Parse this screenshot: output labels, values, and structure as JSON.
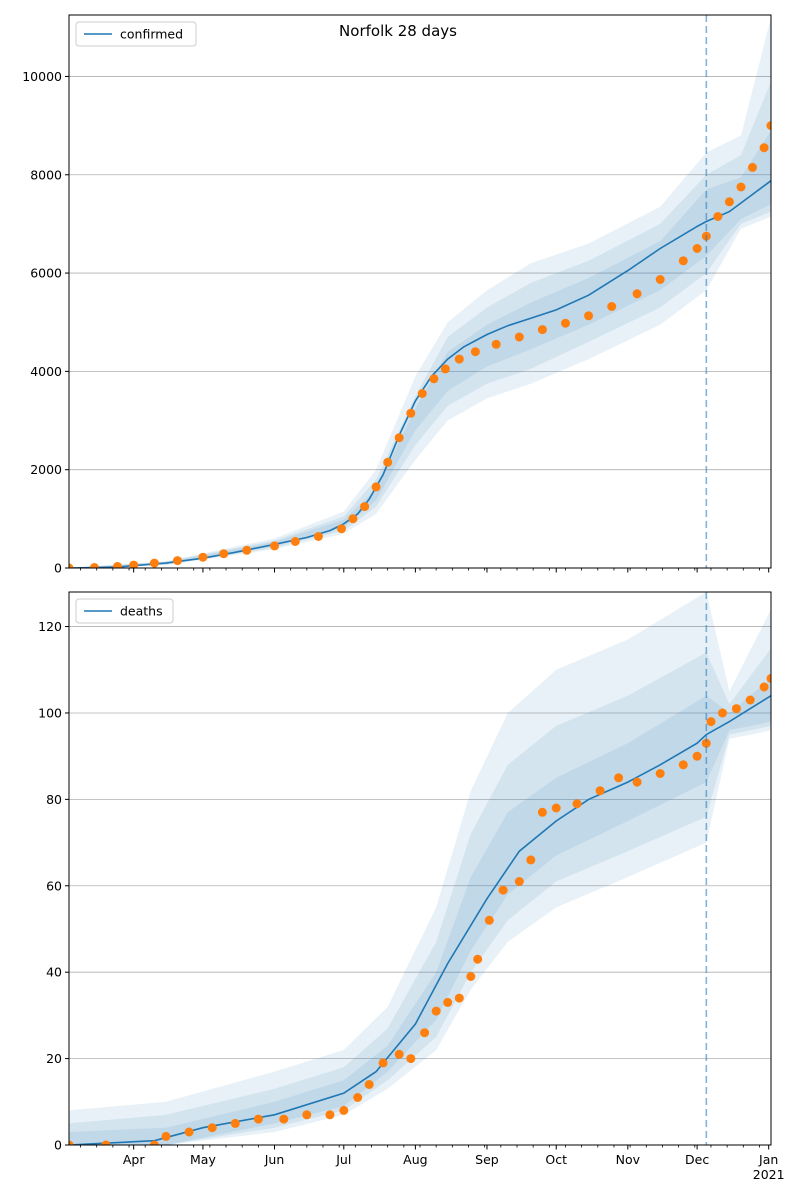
{
  "title": "Norfolk 28 days",
  "colors": {
    "model": "#1f77b4",
    "observed": "#ff7f0e",
    "band": "#1f77b4",
    "grid": "#b0b0b0"
  },
  "x_ticks": [
    "Apr",
    "May",
    "Jun",
    "Jul",
    "Aug",
    "Sep",
    "Oct",
    "Nov",
    "Dec",
    "Jan"
  ],
  "x_year_label": "2021",
  "chart_data": [
    {
      "type": "line",
      "name": "confirmed",
      "x_range": [
        "2020-03-04",
        "2021-01-02"
      ],
      "ylim": [
        0,
        11250
      ],
      "yticks": [
        0,
        2000,
        4000,
        6000,
        8000,
        10000
      ],
      "grid": "y",
      "legend": "top-left",
      "forecast_start": "2020-12-05",
      "legend_entries": [
        "confirmed"
      ],
      "model": {
        "x": [
          "2020-03-04",
          "2020-03-25",
          "2020-04-15",
          "2020-05-01",
          "2020-05-15",
          "2020-06-01",
          "2020-06-15",
          "2020-06-25",
          "2020-07-01",
          "2020-07-07",
          "2020-07-12",
          "2020-07-18",
          "2020-07-25",
          "2020-08-01",
          "2020-08-08",
          "2020-08-15",
          "2020-08-22",
          "2020-09-01",
          "2020-09-10",
          "2020-09-20",
          "2020-10-01",
          "2020-10-15",
          "2020-11-01",
          "2020-11-15",
          "2020-12-01",
          "2020-12-05",
          "2020-12-15",
          "2021-01-02"
        ],
        "y": [
          0,
          20,
          100,
          200,
          320,
          480,
          620,
          760,
          900,
          1100,
          1400,
          1900,
          2700,
          3400,
          3900,
          4250,
          4500,
          4750,
          4930,
          5080,
          5250,
          5550,
          6050,
          6500,
          6950,
          7050,
          7250,
          7880
        ]
      },
      "bands": [
        {
          "x": [
            "2020-03-04",
            "2020-04-15",
            "2020-06-01",
            "2020-07-01",
            "2020-07-15",
            "2020-08-01",
            "2020-08-15",
            "2020-09-01",
            "2020-09-20",
            "2020-10-15",
            "2020-11-15",
            "2020-12-05",
            "2020-12-20",
            "2021-01-02"
          ],
          "lo": [
            0,
            60,
            380,
            700,
            1100,
            2200,
            3000,
            3450,
            3750,
            4250,
            4950,
            5650,
            6900,
            7150
          ],
          "hi": [
            0,
            140,
            600,
            1150,
            2000,
            3900,
            5000,
            5650,
            6200,
            6600,
            7350,
            8450,
            8800,
            11200
          ]
        },
        {
          "x": [
            "2020-03-04",
            "2020-04-15",
            "2020-06-01",
            "2020-07-01",
            "2020-07-15",
            "2020-08-01",
            "2020-08-15",
            "2020-09-01",
            "2020-09-20",
            "2020-10-15",
            "2020-11-15",
            "2020-12-05",
            "2020-12-20",
            "2021-01-02"
          ],
          "lo": [
            0,
            70,
            410,
            760,
            1250,
            2500,
            3300,
            3750,
            4050,
            4600,
            5300,
            6000,
            7000,
            7250
          ],
          "hi": [
            0,
            130,
            560,
            1050,
            1800,
            3500,
            4700,
            5300,
            5800,
            6250,
            7000,
            8000,
            8400,
            9900
          ]
        },
        {
          "x": [
            "2020-03-04",
            "2020-04-15",
            "2020-06-01",
            "2020-07-01",
            "2020-07-15",
            "2020-08-01",
            "2020-08-15",
            "2020-09-01",
            "2020-09-20",
            "2020-10-15",
            "2020-11-15",
            "2020-12-05",
            "2020-12-20",
            "2021-01-02"
          ],
          "lo": [
            0,
            80,
            440,
            820,
            1380,
            2800,
            3600,
            4100,
            4450,
            4950,
            5650,
            6350,
            7100,
            7400
          ],
          "hi": [
            0,
            120,
            530,
            980,
            1600,
            3250,
            4400,
            4950,
            5400,
            5900,
            6650,
            7700,
            7950,
            8900
          ]
        }
      ],
      "observed": {
        "x": [
          "2020-03-04",
          "2020-03-15",
          "2020-03-25",
          "2020-04-01",
          "2020-04-10",
          "2020-04-20",
          "2020-05-01",
          "2020-05-10",
          "2020-05-20",
          "2020-06-01",
          "2020-06-10",
          "2020-06-20",
          "2020-06-30",
          "2020-07-05",
          "2020-07-10",
          "2020-07-15",
          "2020-07-20",
          "2020-07-25",
          "2020-07-30",
          "2020-08-04",
          "2020-08-09",
          "2020-08-14",
          "2020-08-20",
          "2020-08-27",
          "2020-09-05",
          "2020-09-15",
          "2020-09-25",
          "2020-10-05",
          "2020-10-15",
          "2020-10-25",
          "2020-11-05",
          "2020-11-15",
          "2020-11-25",
          "2020-12-01",
          "2020-12-05",
          "2020-12-10",
          "2020-12-15",
          "2020-12-20",
          "2020-12-25",
          "2020-12-30",
          "2021-01-02"
        ],
        "y": [
          0,
          10,
          30,
          60,
          100,
          150,
          220,
          290,
          360,
          450,
          540,
          640,
          800,
          1000,
          1250,
          1650,
          2150,
          2650,
          3150,
          3550,
          3850,
          4050,
          4250,
          4400,
          4550,
          4700,
          4850,
          4980,
          5130,
          5320,
          5580,
          5870,
          6250,
          6500,
          6750,
          7150,
          7450,
          7750,
          8150,
          8550,
          9000
        ]
      }
    },
    {
      "type": "line",
      "name": "deaths",
      "x_range": [
        "2020-03-04",
        "2021-01-02"
      ],
      "ylim": [
        0,
        128
      ],
      "yticks": [
        0,
        20,
        40,
        60,
        80,
        100,
        120
      ],
      "grid": "y",
      "legend": "top-left",
      "forecast_start": "2020-12-05",
      "legend_entries": [
        "deaths"
      ],
      "model": {
        "x": [
          "2020-03-04",
          "2020-04-10",
          "2020-05-01",
          "2020-06-01",
          "2020-07-01",
          "2020-07-15",
          "2020-08-01",
          "2020-08-15",
          "2020-09-01",
          "2020-09-15",
          "2020-10-01",
          "2020-10-15",
          "2020-11-01",
          "2020-11-15",
          "2020-12-01",
          "2020-12-05",
          "2020-12-15",
          "2021-01-02"
        ],
        "y": [
          0,
          1,
          4,
          7,
          12,
          17,
          28,
          42,
          57,
          68,
          75,
          80,
          84,
          88,
          93,
          95,
          98,
          104
        ]
      },
      "bands": [
        {
          "x": [
            "2020-03-04",
            "2020-04-15",
            "2020-06-01",
            "2020-07-01",
            "2020-07-20",
            "2020-08-10",
            "2020-08-25",
            "2020-09-10",
            "2020-10-01",
            "2020-11-01",
            "2020-12-05",
            "2020-12-15",
            "2021-01-02"
          ],
          "lo": [
            0,
            0,
            3,
            7,
            13,
            22,
            36,
            47,
            55,
            62,
            70,
            94,
            96
          ],
          "hi": [
            8,
            10,
            17,
            22,
            32,
            55,
            82,
            100,
            110,
            117,
            128,
            105,
            124
          ]
        },
        {
          "x": [
            "2020-03-04",
            "2020-04-15",
            "2020-06-01",
            "2020-07-01",
            "2020-07-20",
            "2020-08-10",
            "2020-08-25",
            "2020-09-10",
            "2020-10-01",
            "2020-11-01",
            "2020-12-05",
            "2020-12-15",
            "2021-01-02"
          ],
          "lo": [
            0,
            0,
            4,
            8,
            15,
            25,
            40,
            52,
            61,
            68,
            76,
            95,
            97
          ],
          "hi": [
            5,
            7,
            13,
            18,
            27,
            47,
            72,
            88,
            97,
            104,
            114,
            102,
            115
          ]
        },
        {
          "x": [
            "2020-03-04",
            "2020-04-15",
            "2020-06-01",
            "2020-07-01",
            "2020-07-20",
            "2020-08-10",
            "2020-08-25",
            "2020-09-10",
            "2020-10-01",
            "2020-11-01",
            "2020-12-05",
            "2020-12-15",
            "2021-01-02"
          ],
          "lo": [
            0,
            0,
            5,
            9,
            17,
            29,
            45,
            58,
            67,
            75,
            84,
            96,
            98
          ],
          "hi": [
            3,
            4,
            10,
            15,
            23,
            40,
            62,
            77,
            85,
            93,
            104,
            100,
            108
          ]
        }
      ],
      "observed": {
        "x": [
          "2020-03-04",
          "2020-03-20",
          "2020-04-10",
          "2020-04-15",
          "2020-04-25",
          "2020-05-05",
          "2020-05-15",
          "2020-05-25",
          "2020-06-05",
          "2020-06-15",
          "2020-06-25",
          "2020-07-01",
          "2020-07-07",
          "2020-07-12",
          "2020-07-18",
          "2020-07-25",
          "2020-07-30",
          "2020-08-05",
          "2020-08-10",
          "2020-08-15",
          "2020-08-20",
          "2020-08-25",
          "2020-08-28",
          "2020-09-02",
          "2020-09-08",
          "2020-09-15",
          "2020-09-20",
          "2020-09-25",
          "2020-10-01",
          "2020-10-10",
          "2020-10-20",
          "2020-10-28",
          "2020-11-05",
          "2020-11-15",
          "2020-11-25",
          "2020-12-01",
          "2020-12-05",
          "2020-12-07",
          "2020-12-12",
          "2020-12-18",
          "2020-12-24",
          "2020-12-30",
          "2021-01-02"
        ],
        "y": [
          0,
          0,
          0,
          2,
          3,
          4,
          5,
          6,
          6,
          7,
          7,
          8,
          11,
          14,
          19,
          21,
          20,
          26,
          31,
          33,
          34,
          39,
          43,
          52,
          59,
          61,
          66,
          77,
          78,
          79,
          82,
          85,
          84,
          86,
          88,
          90,
          93,
          98,
          100,
          101,
          103,
          106,
          108
        ]
      }
    }
  ]
}
